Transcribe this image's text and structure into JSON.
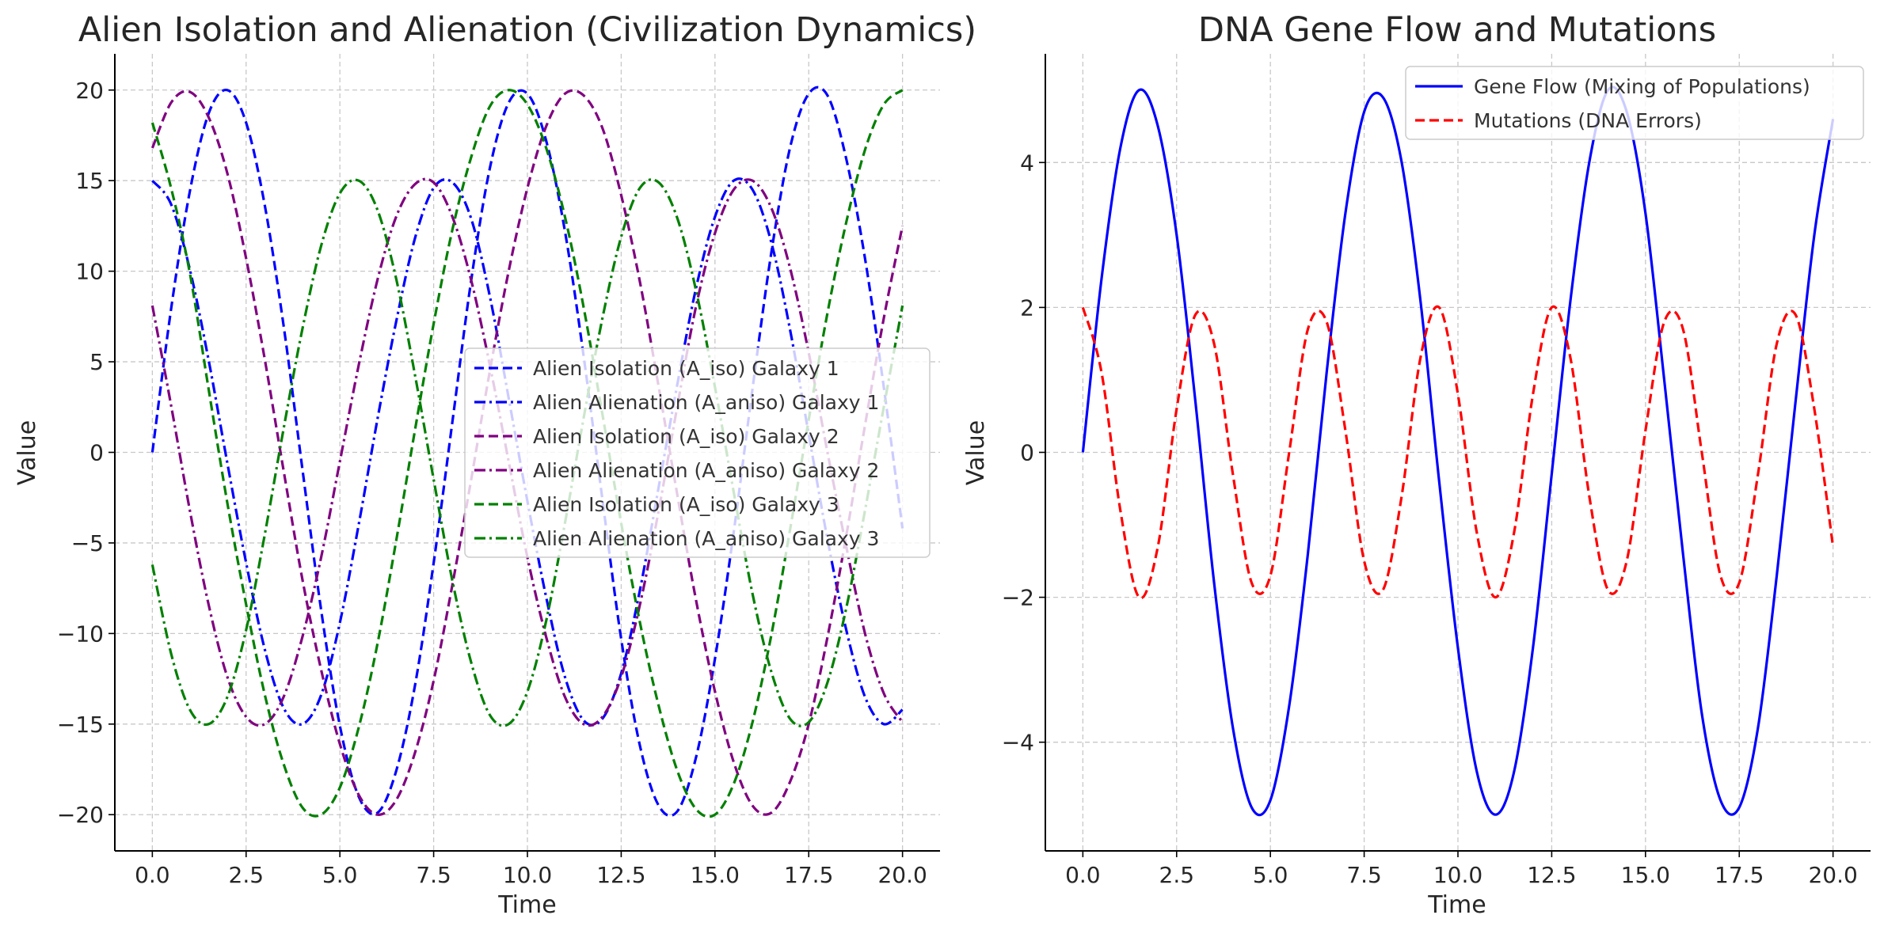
{
  "chart_data": [
    {
      "type": "line",
      "title": "Alien Isolation and Alienation (Civilization Dynamics)",
      "xlabel": "Time",
      "ylabel": "Value",
      "xlim": [
        -1.0,
        21.0
      ],
      "ylim": [
        -22.0,
        22.0
      ],
      "xticks": [
        0.0,
        2.5,
        5.0,
        7.5,
        10.0,
        12.5,
        15.0,
        17.5,
        20.0
      ],
      "xtick_labels": [
        "0.0",
        "2.5",
        "5.0",
        "7.5",
        "10.0",
        "12.5",
        "15.0",
        "17.5",
        "20.0"
      ],
      "yticks": [
        -20,
        -15,
        -10,
        -5,
        0,
        5,
        10,
        15,
        20
      ],
      "ytick_labels": [
        "−20",
        "−15",
        "−10",
        "−5",
        "0",
        "5",
        "10",
        "15",
        "20"
      ],
      "grid": true,
      "legend_position": "center-right",
      "x": [
        0,
        0.5,
        1,
        1.5,
        2,
        2.5,
        3,
        3.5,
        4,
        4.5,
        5,
        5.5,
        6,
        6.5,
        7,
        7.5,
        8,
        8.5,
        9,
        9.5,
        10,
        10.5,
        11,
        11.5,
        12,
        12.5,
        13,
        13.5,
        14,
        14.5,
        15,
        15.5,
        16,
        16.5,
        17,
        17.5,
        18,
        18.5,
        19,
        19.5,
        20
      ],
      "series": [
        {
          "name": "Alien Isolation (A_iso) Galaxy 1",
          "color": "#0000ff",
          "linestyle": "dashed",
          "values": [
            0,
            7.9,
            14.4,
            18.7,
            20,
            18.2,
            13.6,
            7.0,
            -0.9,
            -8.7,
            -15.1,
            -19.0,
            -19.9,
            -17.6,
            -12.9,
            -6.1,
            1.7,
            9.5,
            15.7,
            19.3,
            19.8,
            17.2,
            12.2,
            5.3,
            -2.6,
            -10.3,
            -16.2,
            -19.5,
            -19.8,
            -16.8,
            -11.4,
            -4.4,
            3.5,
            11.0,
            16.8,
            19.8,
            19.7,
            16.2,
            10.7,
            3.6,
            -4.2
          ]
        },
        {
          "name": "Alien Alienation (A_aniso) Galaxy 1",
          "color": "#0000ff",
          "linestyle": "dashdot",
          "values": [
            15,
            13.7,
            10.1,
            5.1,
            -0.6,
            -6.1,
            -10.9,
            -14.1,
            -15.0,
            -13.4,
            -9.4,
            -4.0,
            1.8,
            7.2,
            11.8,
            14.6,
            14.9,
            12.9,
            8.6,
            3.0,
            -2.7,
            -8.0,
            -12.4,
            -14.8,
            -14.7,
            -12.2,
            -7.6,
            -1.9,
            3.8,
            9.1,
            13.0,
            15.0,
            14.5,
            11.6,
            6.8,
            1.0,
            -4.8,
            -9.8,
            -13.5,
            -15.0,
            -14.2
          ]
        },
        {
          "name": "Alien Isolation (A_iso) Galaxy 2",
          "color": "#800080",
          "linestyle": "dashed",
          "values": [
            16.8,
            19.3,
            19.9,
            18.5,
            15.4,
            10.7,
            5.1,
            -1.0,
            -7.0,
            -12.0,
            -16.1,
            -18.9,
            -20.0,
            -19.2,
            -16.6,
            -12.6,
            -7.3,
            -1.5,
            4.5,
            10.0,
            14.6,
            18.0,
            19.8,
            19.7,
            17.9,
            14.2,
            9.4,
            3.6,
            -2.4,
            -8.2,
            -13.2,
            -17.1,
            -19.5,
            -19.9,
            -18.2,
            -15.0,
            -10.2,
            -4.6,
            1.5,
            7.4,
            12.5
          ]
        },
        {
          "name": "Alien Alienation (A_aniso) Galaxy 2",
          "color": "#800080",
          "linestyle": "dashdot",
          "values": [
            8.1,
            2.6,
            -3.2,
            -8.4,
            -12.4,
            -14.6,
            -15.0,
            -13.5,
            -10.2,
            -5.8,
            -0.5,
            4.8,
            9.5,
            13.0,
            14.8,
            14.9,
            13.0,
            9.5,
            4.8,
            -0.5,
            -5.8,
            -10.2,
            -13.5,
            -15.0,
            -14.6,
            -12.4,
            -8.4,
            -3.2,
            2.6,
            8.1,
            12.1,
            14.5,
            15.0,
            13.5,
            10.2,
            5.5,
            0.0,
            -5.2,
            -10.0,
            -13.3,
            -14.9
          ]
        },
        {
          "name": "Alien Isolation (A_iso) Galaxy 3",
          "color": "#008000",
          "linestyle": "dashed",
          "values": [
            18.2,
            14.6,
            9.9,
            3.5,
            -2.8,
            -8.4,
            -13.4,
            -17.2,
            -19.6,
            -20.0,
            -18.5,
            -15.2,
            -10.6,
            -4.9,
            1.2,
            7.1,
            12.3,
            16.3,
            19.1,
            20.0,
            19.2,
            16.8,
            13.0,
            8.0,
            2.1,
            -3.9,
            -9.4,
            -14.0,
            -17.6,
            -19.7,
            -20.0,
            -18.3,
            -14.9,
            -10.1,
            -4.3,
            1.8,
            7.7,
            12.7,
            16.7,
            19.2,
            20.0
          ]
        },
        {
          "name": "Alien Alienation (A_aniso) Galaxy 3",
          "color": "#008000",
          "linestyle": "dashdot",
          "values": [
            -6.2,
            -11.1,
            -14.2,
            -15.0,
            -13.5,
            -9.8,
            -4.5,
            1.3,
            6.8,
            11.4,
            14.3,
            15.0,
            13.4,
            9.6,
            4.3,
            -1.5,
            -7.1,
            -11.6,
            -14.5,
            -15.0,
            -13.2,
            -9.3,
            -3.9,
            1.9,
            7.4,
            11.9,
            14.6,
            14.9,
            12.9,
            8.9,
            3.6,
            -2.2,
            -7.8,
            -12.1,
            -14.7,
            -14.9,
            -12.7,
            -8.6,
            -3.2,
            2.5,
            8.1
          ]
        }
      ]
    },
    {
      "type": "line",
      "title": "DNA Gene Flow and Mutations",
      "xlabel": "Time",
      "ylabel": "Value",
      "xlim": [
        -1.0,
        21.0
      ],
      "ylim": [
        -5.5,
        5.5
      ],
      "xticks": [
        0.0,
        2.5,
        5.0,
        7.5,
        10.0,
        12.5,
        15.0,
        17.5,
        20.0
      ],
      "xtick_labels": [
        "0.0",
        "2.5",
        "5.0",
        "7.5",
        "10.0",
        "12.5",
        "15.0",
        "17.5",
        "20.0"
      ],
      "yticks": [
        -4,
        -2,
        0,
        2,
        4
      ],
      "ytick_labels": [
        "−4",
        "−2",
        "0",
        "2",
        "4"
      ],
      "grid": true,
      "legend_position": "top-right",
      "x": [
        0,
        0.5,
        1,
        1.5,
        2,
        2.5,
        3,
        3.5,
        4,
        4.5,
        5,
        5.5,
        6,
        6.5,
        7,
        7.5,
        8,
        8.5,
        9,
        9.5,
        10,
        10.5,
        11,
        11.5,
        12,
        12.5,
        13,
        13.5,
        14,
        14.5,
        15,
        15.5,
        16,
        16.5,
        17,
        17.5,
        18,
        18.5,
        19,
        19.5,
        20
      ],
      "series": [
        {
          "name": "Gene Flow (Mixing of Populations)",
          "color": "#0000ff",
          "linestyle": "solid",
          "values": [
            0,
            2.4,
            4.2,
            5.0,
            4.5,
            3.0,
            0.7,
            -1.8,
            -3.8,
            -4.9,
            -4.8,
            -3.5,
            -1.4,
            1.1,
            3.3,
            4.7,
            4.9,
            4.0,
            2.1,
            -0.4,
            -2.7,
            -4.4,
            -5.0,
            -4.4,
            -2.7,
            -0.3,
            2.1,
            4.0,
            5.0,
            4.7,
            3.3,
            1.0,
            -1.4,
            -3.6,
            -4.8,
            -4.9,
            -3.8,
            -1.7,
            0.7,
            3.0,
            4.6
          ]
        },
        {
          "name": "Mutations (DNA Errors)",
          "color": "#ff0000",
          "linestyle": "dashed",
          "values": [
            2.0,
            1.1,
            -0.8,
            -2.0,
            -1.3,
            0.6,
            1.9,
            1.5,
            -0.3,
            -1.8,
            -1.7,
            0.0,
            1.7,
            1.8,
            0.3,
            -1.5,
            -1.9,
            -0.6,
            1.3,
            2.0,
            0.8,
            -1.1,
            -2.0,
            -1.1,
            0.8,
            2.0,
            1.3,
            -0.6,
            -1.9,
            -1.5,
            0.3,
            1.8,
            1.7,
            0.0,
            -1.7,
            -1.8,
            -0.3,
            1.5,
            1.9,
            0.6,
            -1.3
          ]
        }
      ]
    }
  ]
}
